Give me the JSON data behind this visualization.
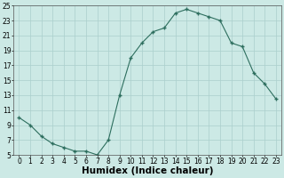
{
  "x": [
    0,
    1,
    2,
    3,
    4,
    5,
    6,
    7,
    8,
    9,
    10,
    11,
    12,
    13,
    14,
    15,
    16,
    17,
    18,
    19,
    20,
    21,
    22,
    23
  ],
  "y": [
    10,
    9,
    7.5,
    6.5,
    6,
    5.5,
    5.5,
    5,
    7,
    13,
    18,
    20,
    21.5,
    22,
    24,
    24.5,
    24,
    23.5,
    23,
    20,
    19.5,
    16,
    14.5,
    12.5
  ],
  "line_color": "#2d6e5e",
  "marker": "P",
  "marker_size": 3,
  "bg_color": "#cce9e5",
  "grid_color": "#aacfcc",
  "xlabel": "Humidex (Indice chaleur)",
  "xlim": [
    -0.5,
    23.5
  ],
  "ylim": [
    5,
    25
  ],
  "yticks": [
    5,
    7,
    9,
    11,
    13,
    15,
    17,
    19,
    21,
    23,
    25
  ],
  "xticks": [
    0,
    1,
    2,
    3,
    4,
    5,
    6,
    7,
    8,
    9,
    10,
    11,
    12,
    13,
    14,
    15,
    16,
    17,
    18,
    19,
    20,
    21,
    22,
    23
  ],
  "tick_fontsize": 5.5,
  "xlabel_fontsize": 7.5
}
